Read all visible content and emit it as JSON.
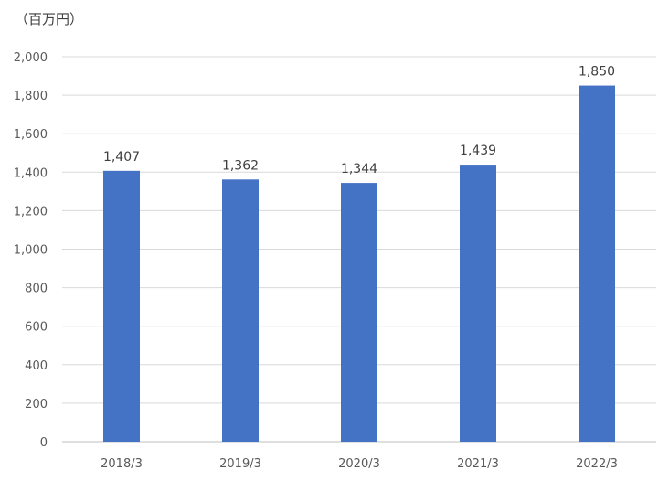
{
  "chart_data": {
    "type": "bar",
    "unit_label": "（百万円）",
    "categories": [
      "2018/3",
      "2019/3",
      "2020/3",
      "2021/3",
      "2022/3"
    ],
    "values": [
      1407,
      1362,
      1344,
      1439,
      1850
    ],
    "data_labels": [
      "1,407",
      "1,362",
      "1,344",
      "1,439",
      "1,850"
    ],
    "ylim": [
      0,
      2000
    ],
    "yticks": [
      0,
      200,
      400,
      600,
      800,
      1000,
      1200,
      1400,
      1600,
      1800,
      2000
    ],
    "ytick_labels": [
      "0",
      "200",
      "400",
      "600",
      "800",
      "1,000",
      "1,200",
      "1,400",
      "1,600",
      "1,800",
      "2,000"
    ],
    "grid": true,
    "bar_color": "#4472C4",
    "grid_color": "#D9D9D9",
    "axis_color": "#BFBFBF"
  }
}
